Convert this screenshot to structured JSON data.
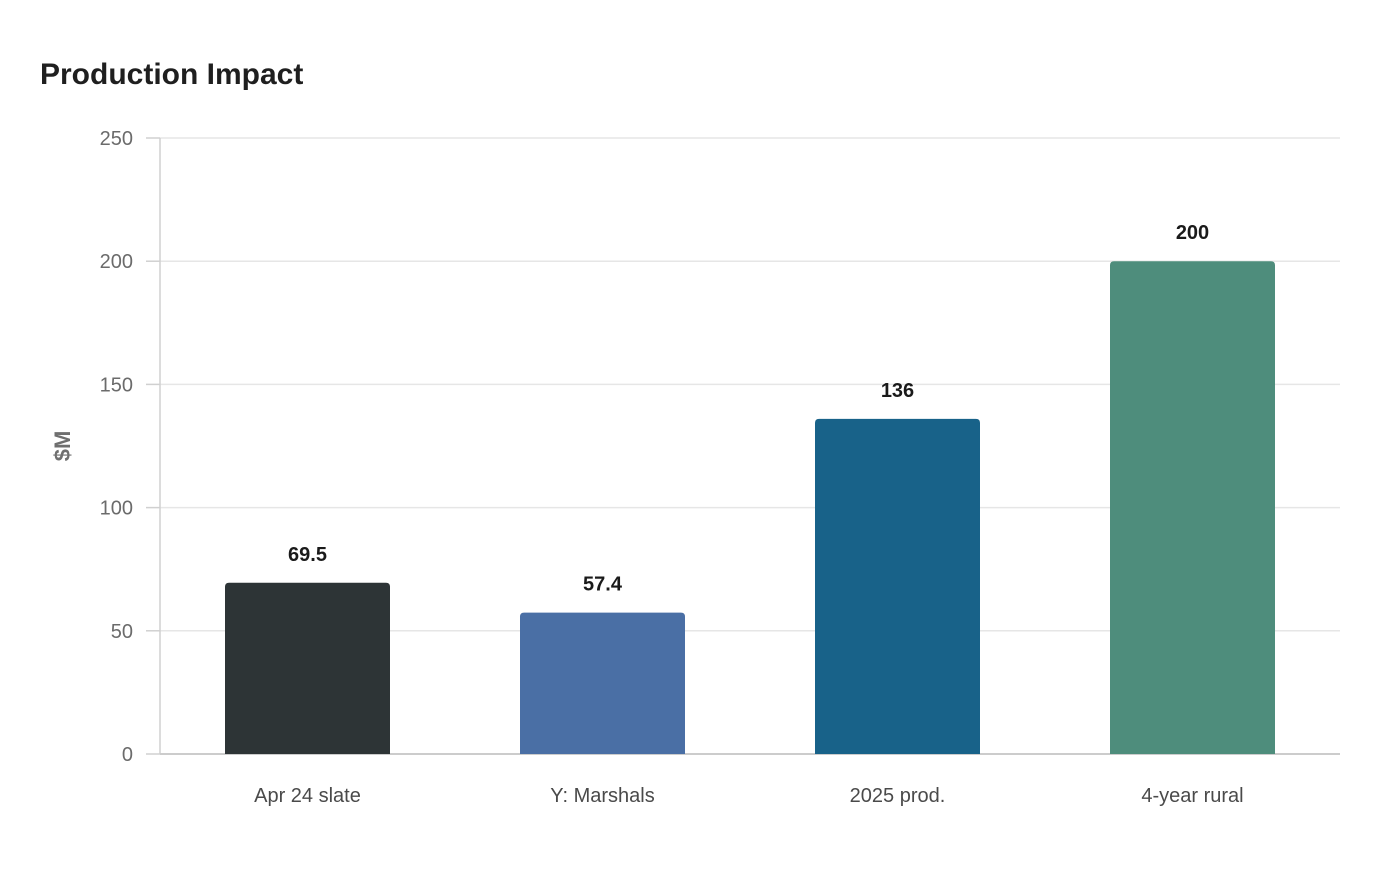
{
  "chart_data": {
    "type": "bar",
    "title": "Production Impact",
    "xlabel": "",
    "ylabel": "$M",
    "ylim": [
      0,
      250
    ],
    "yticks": [
      0,
      50,
      100,
      150,
      200,
      250
    ],
    "grid": true,
    "categories": [
      "Apr 24 slate",
      "Y: Marshals",
      "2025 prod.",
      "4-year rural"
    ],
    "values": [
      69.5,
      57.4,
      136,
      200
    ],
    "value_labels": [
      "69.5",
      "57.4",
      "136",
      "200"
    ],
    "colors": [
      "#2d3436",
      "#4a6fa5",
      "#186289",
      "#4e8d7c"
    ]
  }
}
